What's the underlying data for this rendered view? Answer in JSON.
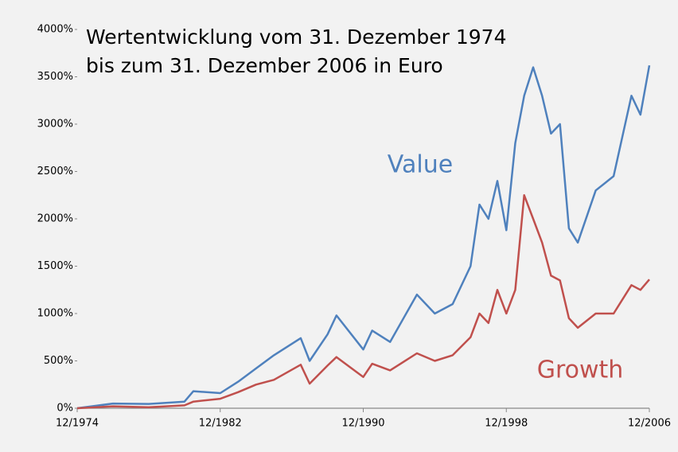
{
  "chart_data": {
    "type": "line",
    "title": [
      "Wertentwicklung vom 31. Dezember 1974",
      "bis zum 31. Dezember 2006 in Euro"
    ],
    "x": [
      "12/1974",
      "12/1976",
      "12/1978",
      "12/1980",
      "06/1981",
      "12/1982",
      "12/1983",
      "12/1984",
      "12/1985",
      "06/1987",
      "12/1987",
      "12/1988",
      "06/1989",
      "12/1990",
      "06/1991",
      "06/1992",
      "12/1993",
      "12/1994",
      "12/1995",
      "12/1996",
      "06/1997",
      "12/1997",
      "06/1998",
      "12/1998",
      "06/1999",
      "12/1999",
      "06/2000",
      "12/2000",
      "06/2001",
      "12/2001",
      "06/2002",
      "12/2002",
      "12/2003",
      "12/2004",
      "12/2005",
      "06/2006",
      "12/2006"
    ],
    "series": [
      {
        "name": "Value",
        "color": "#4f81bd",
        "values": [
          0,
          50,
          45,
          70,
          180,
          160,
          280,
          420,
          560,
          740,
          500,
          780,
          980,
          620,
          820,
          700,
          1200,
          1000,
          1100,
          1500,
          2150,
          2000,
          2400,
          1880,
          2800,
          3300,
          3600,
          3300,
          2900,
          3000,
          1900,
          1750,
          2300,
          2450,
          3300,
          3100,
          3620
        ]
      },
      {
        "name": "Growth",
        "color": "#c0504d",
        "values": [
          0,
          20,
          10,
          30,
          70,
          100,
          170,
          250,
          300,
          460,
          260,
          450,
          540,
          330,
          470,
          400,
          580,
          500,
          560,
          750,
          1000,
          900,
          1250,
          1000,
          1250,
          2250,
          2000,
          1750,
          1400,
          1350,
          950,
          850,
          1000,
          1000,
          1300,
          1250,
          1360
        ]
      }
    ],
    "xlim": [
      "12/1974",
      "12/2006"
    ],
    "xticks": [
      "12/1974",
      "12/1982",
      "12/1990",
      "12/1998",
      "12/2006"
    ],
    "ylim": [
      0,
      4000
    ],
    "yticks": [
      {
        "value": 0,
        "label": "0%"
      },
      {
        "value": 500,
        "label": "500%"
      },
      {
        "value": 1000,
        "label": "1000%"
      },
      {
        "value": 1500,
        "label": "1500%"
      },
      {
        "value": 2000,
        "label": "2000%"
      },
      {
        "value": 2500,
        "label": "2500%"
      },
      {
        "value": 3000,
        "label": "3000%"
      },
      {
        "value": 3500,
        "label": "3500%"
      },
      {
        "value": 4000,
        "label": "4000%"
      }
    ]
  }
}
